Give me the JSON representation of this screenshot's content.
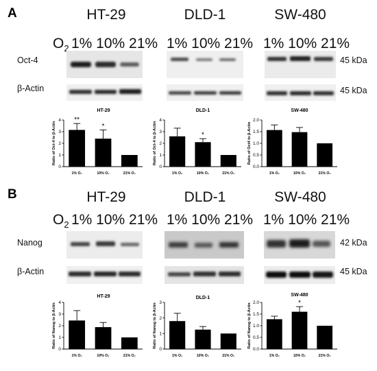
{
  "panels": [
    {
      "letter": "A",
      "o2_label": "O",
      "o2_sub": "2",
      "marker_label": "Oct-4",
      "control_label": "β-Actin",
      "cells": [
        {
          "title": "HT-29",
          "o2_levels": "1% 10% 21%"
        },
        {
          "title": "DLD-1",
          "o2_levels": "1% 10% 21%"
        },
        {
          "title": "SW-480",
          "o2_levels": "1% 10% 21%"
        }
      ],
      "marker_kda": "45 kDa",
      "control_kda": "45 kDa"
    },
    {
      "letter": "B",
      "o2_label": "O",
      "o2_sub": "2",
      "marker_label": "Nanog",
      "control_label": "β-Actin",
      "cells": [
        {
          "title": "HT-29",
          "o2_levels": "1% 10% 21%"
        },
        {
          "title": "DLD-1",
          "o2_levels": "1% 10% 21%"
        },
        {
          "title": "SW-480",
          "o2_levels": "1% 10% 21%"
        }
      ],
      "marker_kda": "42 kDa",
      "control_kda": "45 kDa"
    }
  ],
  "chart_data": [
    {
      "type": "bar",
      "title": "HT-29",
      "ylabel": "Ratio of Oct-4 to β-Actin",
      "categories": [
        "1% O₂",
        "10% O₂",
        "21% O₂"
      ],
      "values": [
        3.15,
        2.4,
        1.0
      ],
      "errors": [
        0.55,
        0.75,
        0
      ],
      "significance": [
        "**",
        "*",
        ""
      ],
      "ylim": [
        0,
        4
      ],
      "yticks": [
        "0",
        "1",
        "2",
        "3",
        "4"
      ]
    },
    {
      "type": "bar",
      "title": "DLD-1",
      "ylabel": "Ratio of Oct-4 to β-Actin",
      "categories": [
        "1% O₂",
        "10% O₂",
        "21% O₂"
      ],
      "values": [
        2.6,
        2.1,
        1.0
      ],
      "errors": [
        0.7,
        0.3,
        0
      ],
      "significance": [
        "",
        "*",
        ""
      ],
      "ylim": [
        0,
        4
      ],
      "yticks": [
        "0",
        "1",
        "2",
        "3",
        "4"
      ]
    },
    {
      "type": "bar",
      "title": "SW-480",
      "ylabel": "Ratio of Oct4 to β-Actin",
      "categories": [
        "1% O₂",
        "10% O₂",
        "21% O₂"
      ],
      "values": [
        1.57,
        1.48,
        1.0
      ],
      "errors": [
        0.22,
        0.2,
        0
      ],
      "significance": [
        "",
        "",
        ""
      ],
      "ylim": [
        0,
        2
      ],
      "yticks": [
        "0.0",
        "0.5",
        "1.0",
        "1.5",
        "2.0"
      ]
    },
    {
      "type": "bar",
      "title": "HT-29",
      "ylabel": "Ratio of Nanog to β-Actin",
      "categories": [
        "1% O₂",
        "10% O₂",
        "21% O₂"
      ],
      "values": [
        2.45,
        1.88,
        1.0
      ],
      "errors": [
        0.85,
        0.4,
        0
      ],
      "significance": [
        "",
        "",
        ""
      ],
      "ylim": [
        0,
        4
      ],
      "yticks": [
        "0",
        "1",
        "2",
        "3",
        "4"
      ]
    },
    {
      "type": "bar",
      "title": "DLD-1",
      "ylabel": "Ratio of Nanog to β-Actin",
      "categories": [
        "1% O₂",
        "10% O₂",
        "21% O₂"
      ],
      "values": [
        1.8,
        1.25,
        1.0
      ],
      "errors": [
        0.5,
        0.2,
        0
      ],
      "significance": [
        "",
        "",
        ""
      ],
      "ylim": [
        0,
        3
      ],
      "yticks": [
        "0",
        "1",
        "2",
        "3"
      ]
    },
    {
      "type": "bar",
      "title": "SW-480",
      "ylabel": "Ratio of Nanog to β-Actin",
      "categories": [
        "1% O₂",
        "10% O₂",
        "21% O₂"
      ],
      "values": [
        1.28,
        1.6,
        1.0
      ],
      "errors": [
        0.13,
        0.22,
        0
      ],
      "significance": [
        "",
        "*",
        ""
      ],
      "ylim": [
        0,
        2
      ],
      "yticks": [
        "0.0",
        "0.5",
        "1.0",
        "1.5",
        "2.0"
      ]
    }
  ]
}
